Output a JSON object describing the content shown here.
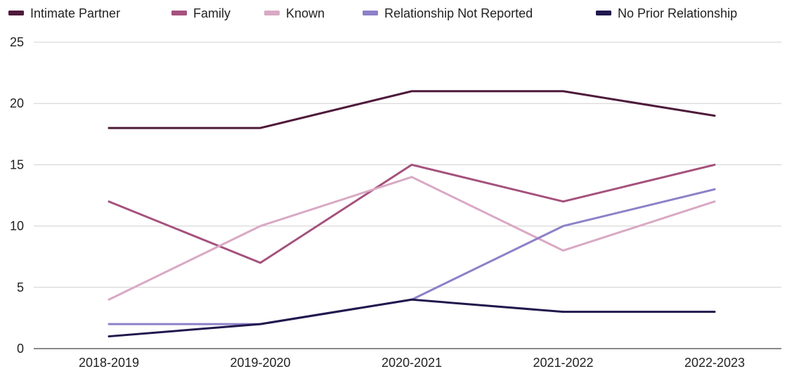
{
  "chart_data": {
    "type": "line",
    "title": "",
    "xlabel": "",
    "ylabel": "",
    "categories": [
      "2018-2019",
      "2019-2020",
      "2020-2021",
      "2021-2022",
      "2022-2023"
    ],
    "ylim": [
      0,
      25
    ],
    "yticks": [
      0,
      5,
      10,
      15,
      20,
      25
    ],
    "grid": true,
    "legend_position": "top",
    "series": [
      {
        "name": "Intimate Partner",
        "color": "#4e1a3a",
        "values": [
          18,
          18,
          21,
          21,
          19
        ]
      },
      {
        "name": "Family",
        "color": "#a5517d",
        "values": [
          12,
          7,
          15,
          12,
          15
        ]
      },
      {
        "name": "Known",
        "color": "#d9a9c4",
        "values": [
          4,
          10,
          14,
          8,
          12
        ]
      },
      {
        "name": "Relationship Not Reported",
        "color": "#8e80c8",
        "values": [
          2,
          2,
          4,
          10,
          13
        ]
      },
      {
        "name": "No Prior Relationship",
        "color": "#20184d",
        "values": [
          1,
          2,
          4,
          3,
          3
        ]
      }
    ]
  }
}
